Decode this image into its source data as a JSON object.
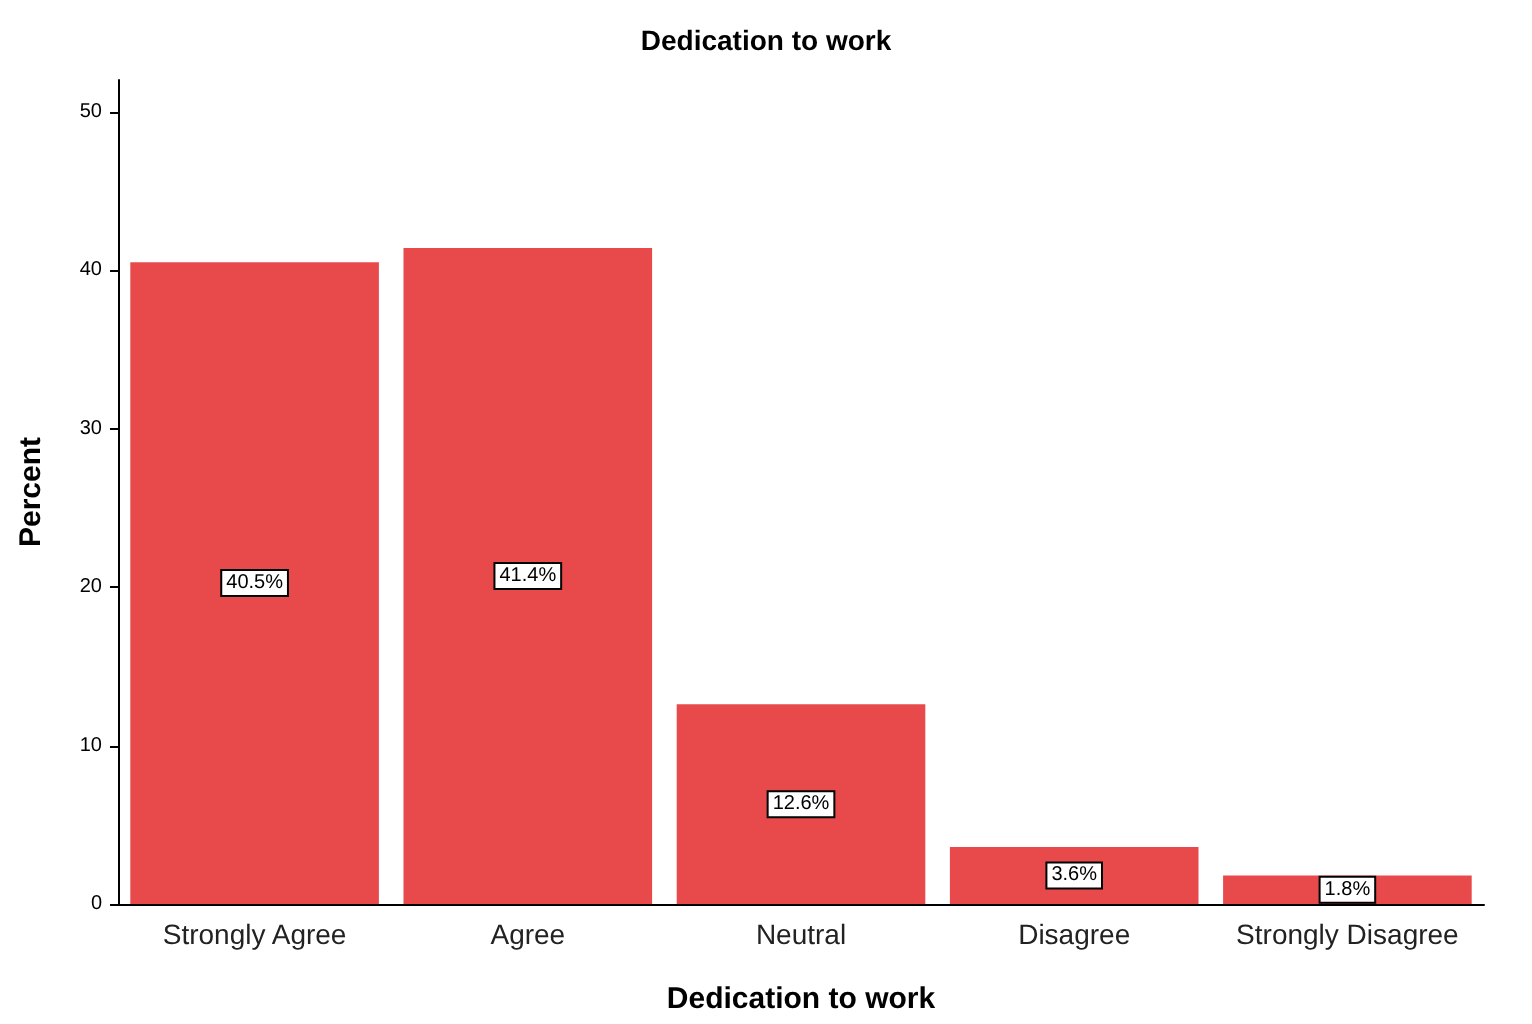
{
  "chart_data": {
    "type": "bar",
    "title": "Dedication to work",
    "xlabel": "Dedication to work",
    "ylabel": "Percent",
    "categories": [
      "Strongly Agree",
      "Agree",
      "Neutral",
      "Disagree",
      "Strongly Disagree"
    ],
    "values": [
      40.5,
      41.4,
      12.6,
      3.6,
      1.8
    ],
    "value_labels": [
      "40.5%",
      "41.4%",
      "12.6%",
      "3.6%",
      "1.8%"
    ],
    "color": "#e84a4b",
    "ylim": [
      0,
      52
    ],
    "yticks": [
      0,
      10,
      20,
      30,
      40,
      50
    ],
    "grid": false
  }
}
